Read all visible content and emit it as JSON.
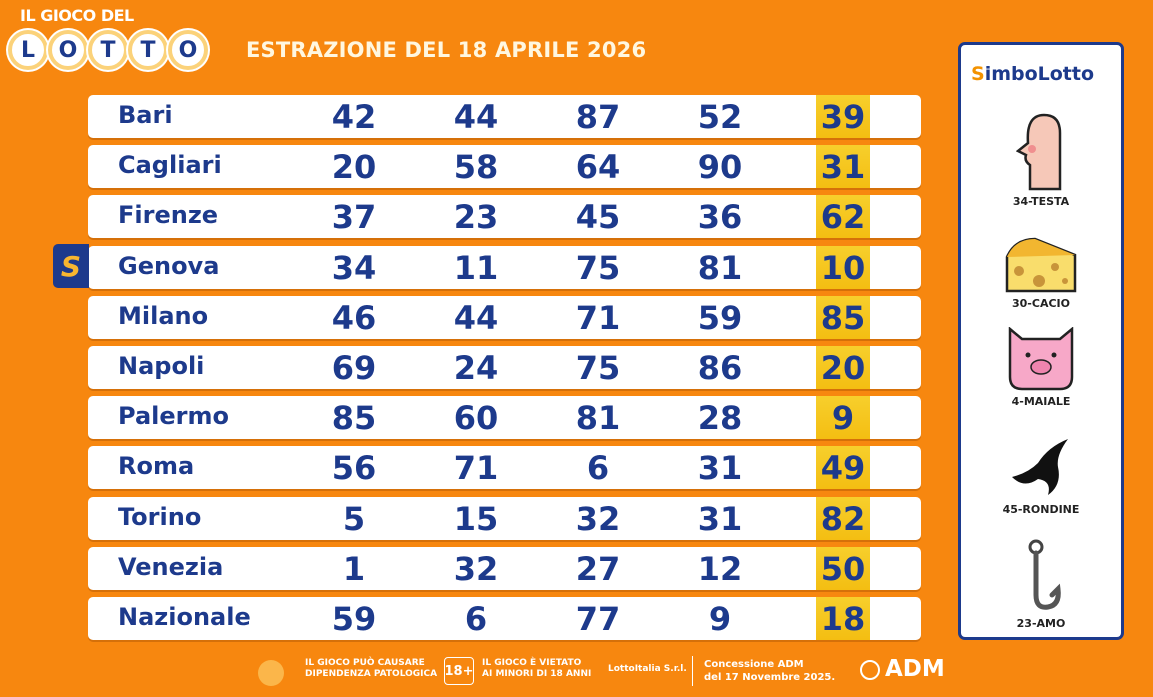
{
  "header": {
    "logo_top": "IL GIOCO DEL",
    "logo_letters": [
      "L",
      "O",
      "T",
      "T",
      "O"
    ],
    "title": "ESTRAZIONE DEL 18 APRILE 2026"
  },
  "draws": [
    {
      "city": "Bari",
      "numbers": [
        "42",
        "44",
        "87",
        "52",
        "39"
      ]
    },
    {
      "city": "Cagliari",
      "numbers": [
        "20",
        "58",
        "64",
        "90",
        "31"
      ]
    },
    {
      "city": "Firenze",
      "numbers": [
        "37",
        "23",
        "45",
        "36",
        "62"
      ]
    },
    {
      "city": "Genova",
      "numbers": [
        "34",
        "11",
        "75",
        "81",
        "10"
      ],
      "simbolotto": true
    },
    {
      "city": "Milano",
      "numbers": [
        "46",
        "44",
        "71",
        "59",
        "85"
      ]
    },
    {
      "city": "Napoli",
      "numbers": [
        "69",
        "24",
        "75",
        "86",
        "20"
      ]
    },
    {
      "city": "Palermo",
      "numbers": [
        "85",
        "60",
        "81",
        "28",
        "9"
      ]
    },
    {
      "city": "Roma",
      "numbers": [
        "56",
        "71",
        "6",
        "31",
        "49"
      ]
    },
    {
      "city": "Torino",
      "numbers": [
        "5",
        "15",
        "32",
        "31",
        "82"
      ]
    },
    {
      "city": "Venezia",
      "numbers": [
        "1",
        "32",
        "27",
        "12",
        "50"
      ]
    },
    {
      "city": "Nazionale",
      "numbers": [
        "59",
        "6",
        "77",
        "9",
        "18"
      ]
    }
  ],
  "simbolotto": {
    "badge": "S",
    "title_s": "S",
    "title_rest": "imboLotto",
    "symbols": [
      {
        "label": "34-TESTA",
        "icon": "head-icon"
      },
      {
        "label": "30-CACIO",
        "icon": "cheese-icon"
      },
      {
        "label": "4-MAIALE",
        "icon": "pig-icon"
      },
      {
        "label": "45-RONDINE",
        "icon": "swallow-icon"
      },
      {
        "label": "23-AMO",
        "icon": "hook-icon"
      }
    ]
  },
  "footer": {
    "warning1": "IL GIOCO PUÒ CAUSARE",
    "warning2": "DIPENDENZA PATOLOGICA",
    "age_badge": "18+",
    "age1": "IL GIOCO È VIETATO",
    "age2": "AI MINORI DI 18 ANNI",
    "company": "LottoItalia S.r.l.",
    "concession1": "Concessione ADM",
    "concession2": "del 17 Novembre 2025.",
    "adm": "ADM"
  },
  "colors": {
    "background": "#f7870f",
    "text": "#1d3a8c",
    "highlight": "#f5c419"
  }
}
